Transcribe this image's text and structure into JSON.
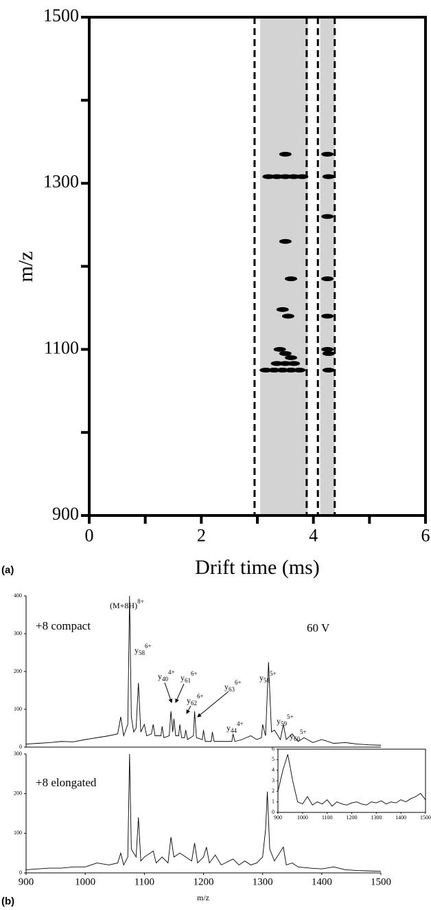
{
  "chart_data": [
    {
      "type": "scatter",
      "frame": true,
      "xlabel": "Drift time (ms)",
      "ylabel": "m/z",
      "panel": "(a)",
      "xlim": [
        0,
        6
      ],
      "xticks": [
        0,
        2,
        4,
        6
      ],
      "xminor": [
        1,
        3,
        5
      ],
      "ylim": [
        900,
        1500
      ],
      "yticks": [
        900,
        1100,
        1300,
        1500
      ],
      "yminor": [
        1000,
        1200,
        1400
      ],
      "bands": [
        [
          3.05,
          3.9
        ],
        [
          4.12,
          4.38
        ]
      ],
      "band_color": "#c4c4c4",
      "dashed_lines": [
        2.95,
        3.88,
        4.08,
        4.38
      ],
      "color": "#000000",
      "x": [
        3.2,
        3.35,
        3.5,
        3.65,
        3.8,
        4.27,
        3.5,
        3.6,
        4.25,
        3.45,
        3.55,
        4.25,
        3.4,
        3.5,
        3.6,
        4.25,
        3.35,
        3.5,
        3.65,
        4.27,
        3.15,
        3.3,
        3.45,
        3.6,
        3.75,
        4.27,
        3.5,
        4.25,
        4.25
      ],
      "y": [
        1308,
        1308,
        1308,
        1308,
        1308,
        1308,
        1230,
        1185,
        1185,
        1148,
        1140,
        1140,
        1100,
        1095,
        1090,
        1100,
        1083,
        1083,
        1083,
        1095,
        1075,
        1075,
        1075,
        1075,
        1075,
        1075,
        1335,
        1335,
        1260
      ]
    },
    {
      "type": "line",
      "frame": false,
      "label": "+8 compact",
      "note": "60 V",
      "color": "#000000",
      "xlim": [
        900,
        1500
      ],
      "ylim": [
        0,
        400
      ],
      "yticks": [
        0,
        100,
        200,
        300,
        400
      ],
      "annotations": [
        {
          "text": "(M+8H)",
          "sup": "8+"
        },
        {
          "text": "y",
          "sub": "58",
          "sup": "6+"
        },
        {
          "text": "y",
          "sub": "40",
          "sup": "4+"
        },
        {
          "text": "y",
          "sub": "61",
          "sup": "6+"
        },
        {
          "text": "y",
          "sub": "62",
          "sup": "6+"
        },
        {
          "text": "y",
          "sub": "63",
          "sup": "6+"
        },
        {
          "text": "y",
          "sub": "44",
          "sup": "4+"
        },
        {
          "text": "y",
          "sub": "58",
          "sup": "5+"
        },
        {
          "text": "y",
          "sub": "59",
          "sup": "5+"
        },
        {
          "text": "y",
          "sub": "60",
          "sup": "5+"
        }
      ],
      "x": [
        900,
        920,
        940,
        960,
        980,
        1000,
        1020,
        1040,
        1055,
        1060,
        1065,
        1072,
        1075,
        1078,
        1082,
        1086,
        1090,
        1094,
        1100,
        1104,
        1112,
        1115,
        1118,
        1128,
        1130,
        1133,
        1142,
        1145,
        1148,
        1150,
        1153,
        1158,
        1160,
        1163,
        1168,
        1170,
        1173,
        1183,
        1185,
        1188,
        1198,
        1200,
        1203,
        1213,
        1215,
        1218,
        1235,
        1248,
        1250,
        1253,
        1265,
        1280,
        1290,
        1298,
        1300,
        1305,
        1310,
        1315,
        1320,
        1330,
        1335,
        1340,
        1350,
        1360,
        1370,
        1385,
        1400,
        1420,
        1440,
        1460,
        1480,
        1500
      ],
      "values": [
        8,
        10,
        12,
        15,
        14,
        20,
        25,
        30,
        35,
        80,
        30,
        60,
        400,
        80,
        40,
        50,
        170,
        40,
        60,
        30,
        35,
        60,
        30,
        30,
        55,
        25,
        30,
        95,
        40,
        75,
        30,
        30,
        60,
        25,
        25,
        45,
        20,
        30,
        95,
        25,
        20,
        45,
        15,
        15,
        40,
        15,
        15,
        15,
        35,
        15,
        20,
        30,
        20,
        25,
        60,
        30,
        225,
        40,
        45,
        20,
        60,
        20,
        35,
        15,
        25,
        12,
        20,
        10,
        12,
        8,
        6,
        5
      ]
    },
    {
      "type": "line",
      "frame": false,
      "label": "+8 elongated",
      "xlabel": "m/z",
      "panel": "(b)",
      "color": "#000000",
      "xlim": [
        900,
        1500
      ],
      "xticks": [
        900,
        1000,
        1100,
        1200,
        1300,
        1400,
        1500
      ],
      "ylim": [
        0,
        300
      ],
      "yticks": [
        0,
        100,
        200,
        300
      ],
      "x": [
        900,
        920,
        940,
        960,
        980,
        1000,
        1020,
        1040,
        1055,
        1060,
        1065,
        1072,
        1075,
        1078,
        1086,
        1090,
        1094,
        1100,
        1115,
        1120,
        1130,
        1140,
        1145,
        1150,
        1160,
        1170,
        1180,
        1185,
        1190,
        1200,
        1205,
        1210,
        1220,
        1230,
        1250,
        1260,
        1270,
        1280,
        1290,
        1300,
        1305,
        1308,
        1312,
        1320,
        1335,
        1340,
        1350,
        1360,
        1380,
        1400,
        1420,
        1440,
        1460,
        1480,
        1500
      ],
      "values": [
        8,
        10,
        12,
        12,
        15,
        15,
        25,
        20,
        25,
        50,
        20,
        40,
        300,
        60,
        40,
        140,
        30,
        40,
        55,
        25,
        40,
        25,
        90,
        40,
        50,
        40,
        30,
        75,
        25,
        40,
        65,
        25,
        45,
        20,
        35,
        20,
        30,
        20,
        25,
        40,
        110,
        205,
        60,
        30,
        65,
        20,
        25,
        15,
        12,
        10,
        15,
        8,
        6,
        5,
        4
      ]
    },
    {
      "type": "line",
      "frame": true,
      "color": "#000000",
      "xlim": [
        900,
        1500
      ],
      "xticks": [
        900,
        1000,
        1100,
        1200,
        1300,
        1400,
        1500
      ],
      "ylim": [
        0,
        6
      ],
      "yticks": [
        0,
        1,
        2,
        3,
        4,
        5,
        6
      ],
      "x": [
        900,
        920,
        940,
        960,
        980,
        1000,
        1020,
        1040,
        1060,
        1080,
        1100,
        1120,
        1140,
        1160,
        1180,
        1200,
        1220,
        1240,
        1260,
        1280,
        1300,
        1320,
        1340,
        1360,
        1380,
        1400,
        1420,
        1440,
        1460,
        1480,
        1500
      ],
      "values": [
        2,
        4,
        5.5,
        3,
        1,
        0.8,
        1.5,
        0.7,
        1,
        0.8,
        1.2,
        0.6,
        1,
        0.8,
        0.7,
        0.9,
        1,
        0.8,
        0.7,
        1,
        0.9,
        1.1,
        0.8,
        1,
        0.9,
        1.2,
        1,
        1.3,
        1.5,
        1.8,
        1.2
      ]
    }
  ]
}
